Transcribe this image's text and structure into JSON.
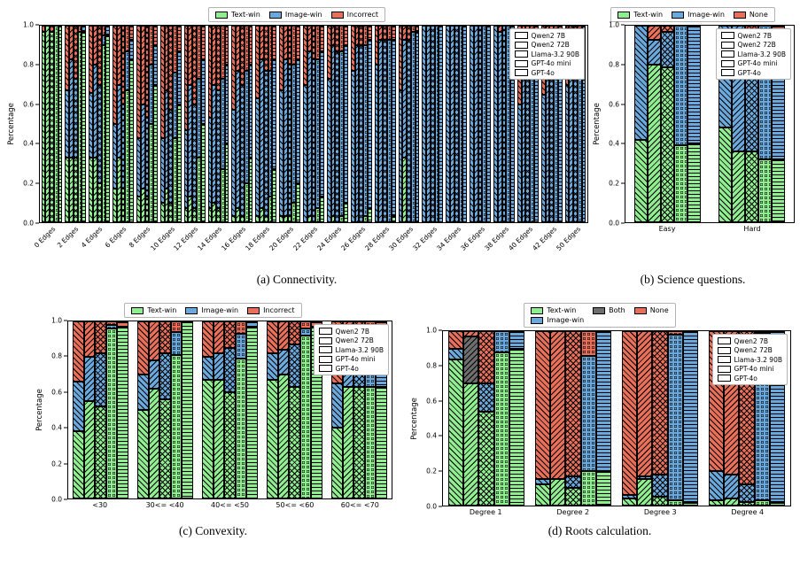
{
  "models": [
    {
      "name": "Qwen2 7B",
      "hatch": "diagonal-forward"
    },
    {
      "name": "Qwen2 72B",
      "hatch": "diagonal-back"
    },
    {
      "name": "Llama-3.2 90B",
      "hatch": "cross"
    },
    {
      "name": "GPT-4o mini",
      "hatch": "dots"
    },
    {
      "name": "GPT-4o",
      "hatch": "horizontal"
    }
  ],
  "colors": {
    "text_win": "#90EE90",
    "image_win": "#6BA8DB",
    "incorrect": "#E8705B",
    "none": "#E8705B",
    "both": "#6E6E6E",
    "edge": "#000000"
  },
  "chart_data": [
    {
      "id": "a",
      "type": "bar",
      "stacked": true,
      "caption": "(a) Connectivity.",
      "ylabel": "Percentage",
      "ylim": [
        0,
        1.0
      ],
      "yticks": [
        0.0,
        0.2,
        0.4,
        0.6,
        0.8,
        1.0
      ],
      "rotate_xticks": true,
      "group_padding": 1.5,
      "segments": [
        {
          "label": "Text-win",
          "color": "#90EE90"
        },
        {
          "label": "Image-win",
          "color": "#6BA8DB"
        },
        {
          "label": "Incorrect",
          "color": "#E8705B"
        }
      ],
      "categories": [
        "0 Edges",
        "2 Edges",
        "4 Edges",
        "6 Edges",
        "8 Edges",
        "10 Edges",
        "12 Edges",
        "14 Edges",
        "16 Edges",
        "18 Edges",
        "20 Edges",
        "22 Edges",
        "24 Edges",
        "26 Edges",
        "28 Edges",
        "30 Edges",
        "32 Edges",
        "34 Edges",
        "36 Edges",
        "38 Edges",
        "40 Edges",
        "42 Edges",
        "50 Edges"
      ],
      "values": [
        [
          [
            0.97,
            0,
            0.03
          ],
          [
            1,
            0,
            0
          ],
          [
            0.97,
            0,
            0.03
          ],
          [
            1,
            0,
            0
          ],
          [
            1,
            0,
            0
          ]
        ],
        [
          [
            0.33,
            0.34,
            0.33
          ],
          [
            0.33,
            0.5,
            0.17
          ],
          [
            0.33,
            0.4,
            0.27
          ],
          [
            0.97,
            0,
            0.03
          ],
          [
            0.97,
            0.03,
            0
          ]
        ],
        [
          [
            0.33,
            0.33,
            0.34
          ],
          [
            0.33,
            0.47,
            0.2
          ],
          [
            0.2,
            0.5,
            0.3
          ],
          [
            0.9,
            0.05,
            0.05
          ],
          [
            0.95,
            0.05,
            0
          ]
        ],
        [
          [
            0.17,
            0.33,
            0.5
          ],
          [
            0.33,
            0.37,
            0.3
          ],
          [
            0.17,
            0.43,
            0.4
          ],
          [
            0.67,
            0.2,
            0.13
          ],
          [
            0.83,
            0.1,
            0.07
          ]
        ],
        [
          [
            0.13,
            0.3,
            0.57
          ],
          [
            0.17,
            0.43,
            0.4
          ],
          [
            0.13,
            0.4,
            0.47
          ],
          [
            0.5,
            0.3,
            0.2
          ],
          [
            0.7,
            0.2,
            0.1
          ]
        ],
        [
          [
            0.1,
            0.33,
            0.57
          ],
          [
            0.17,
            0.5,
            0.33
          ],
          [
            0.1,
            0.47,
            0.43
          ],
          [
            0.43,
            0.33,
            0.24
          ],
          [
            0.6,
            0.27,
            0.13
          ]
        ],
        [
          [
            0.07,
            0.4,
            0.53
          ],
          [
            0.13,
            0.57,
            0.3
          ],
          [
            0.07,
            0.53,
            0.4
          ],
          [
            0.33,
            0.4,
            0.27
          ],
          [
            0.5,
            0.33,
            0.17
          ]
        ],
        [
          [
            0.07,
            0.46,
            0.47
          ],
          [
            0.1,
            0.6,
            0.3
          ],
          [
            0.07,
            0.6,
            0.33
          ],
          [
            0.27,
            0.46,
            0.27
          ],
          [
            0.4,
            0.4,
            0.2
          ]
        ],
        [
          [
            0.03,
            0.54,
            0.43
          ],
          [
            0.07,
            0.7,
            0.23
          ],
          [
            0.03,
            0.67,
            0.3
          ],
          [
            0.2,
            0.57,
            0.23
          ],
          [
            0.33,
            0.47,
            0.2
          ]
        ],
        [
          [
            0.03,
            0.6,
            0.37
          ],
          [
            0.07,
            0.76,
            0.17
          ],
          [
            0.03,
            0.74,
            0.23
          ],
          [
            0.13,
            0.64,
            0.23
          ],
          [
            0.27,
            0.56,
            0.17
          ]
        ],
        [
          [
            0.03,
            0.64,
            0.33
          ],
          [
            0.03,
            0.8,
            0.17
          ],
          [
            0.03,
            0.77,
            0.2
          ],
          [
            0.1,
            0.7,
            0.2
          ],
          [
            0.2,
            0.63,
            0.17
          ]
        ],
        [
          [
            0,
            0.7,
            0.3
          ],
          [
            0.03,
            0.84,
            0.13
          ],
          [
            0,
            0.83,
            0.17
          ],
          [
            0.07,
            0.76,
            0.17
          ],
          [
            0.13,
            0.74,
            0.13
          ]
        ],
        [
          [
            0,
            0.73,
            0.27
          ],
          [
            0.03,
            0.87,
            0.1
          ],
          [
            0,
            0.87,
            0.13
          ],
          [
            0.03,
            0.84,
            0.13
          ],
          [
            0.1,
            0.8,
            0.1
          ]
        ],
        [
          [
            0,
            0.77,
            0.23
          ],
          [
            0,
            0.9,
            0.1
          ],
          [
            0,
            0.9,
            0.1
          ],
          [
            0.03,
            0.87,
            0.1
          ],
          [
            0.07,
            0.86,
            0.07
          ]
        ],
        [
          [
            0,
            0.8,
            0.2
          ],
          [
            0,
            0.93,
            0.07
          ],
          [
            0,
            0.93,
            0.07
          ],
          [
            0,
            0.93,
            0.07
          ],
          [
            0.03,
            0.9,
            0.07
          ]
        ],
        [
          [
            0,
            0.67,
            0.33
          ],
          [
            0.33,
            0.6,
            0.07
          ],
          [
            0,
            0.93,
            0.07
          ],
          [
            0,
            0.97,
            0.03
          ],
          [
            0,
            0.97,
            0.03
          ]
        ],
        [
          [
            0,
            1,
            0
          ],
          [
            0,
            1,
            0
          ],
          [
            0,
            1,
            0
          ],
          [
            0,
            1,
            0
          ],
          [
            0,
            1,
            0
          ]
        ],
        [
          [
            0,
            1,
            0
          ],
          [
            0,
            1,
            0
          ],
          [
            0,
            1,
            0
          ],
          [
            0,
            1,
            0
          ],
          [
            0,
            1,
            0
          ]
        ],
        [
          [
            0,
            1,
            0
          ],
          [
            0,
            1,
            0
          ],
          [
            0,
            1,
            0
          ],
          [
            0,
            1,
            0
          ],
          [
            0,
            1,
            0
          ]
        ],
        [
          [
            0,
            1,
            0
          ],
          [
            0,
            0.97,
            0.03
          ],
          [
            0,
            1,
            0
          ],
          [
            0,
            1,
            0
          ],
          [
            0,
            1,
            0
          ]
        ],
        [
          [
            0,
            0.6,
            0.4
          ],
          [
            0,
            0.8,
            0.2
          ],
          [
            0,
            0.75,
            0.25
          ],
          [
            0,
            0.85,
            0.15
          ],
          [
            0,
            0.9,
            0.1
          ]
        ],
        [
          [
            0,
            0.65,
            0.35
          ],
          [
            0,
            0.85,
            0.15
          ],
          [
            0,
            0.8,
            0.2
          ],
          [
            0,
            0.9,
            0.1
          ],
          [
            0,
            0.95,
            0.05
          ]
        ],
        [
          [
            0,
            0.7,
            0.3
          ],
          [
            0,
            0.9,
            0.1
          ],
          [
            0,
            0.85,
            0.15
          ],
          [
            0,
            0.95,
            0.05
          ],
          [
            0,
            1,
            0
          ]
        ]
      ]
    },
    {
      "id": "b",
      "type": "bar",
      "stacked": true,
      "caption": "(b) Science questions.",
      "ylabel": "Percentage",
      "ylim": [
        0,
        1.0
      ],
      "yticks": [
        0.0,
        0.2,
        0.4,
        0.6,
        0.8,
        1.0
      ],
      "rotate_xticks": false,
      "group_padding": 10,
      "segments": [
        {
          "label": "Text-win",
          "color": "#90EE90"
        },
        {
          "label": "Image-win",
          "color": "#6BA8DB"
        },
        {
          "label": "None",
          "color": "#E8705B"
        }
      ],
      "categories": [
        "Easy",
        "Hard"
      ],
      "values": [
        [
          [
            0.42,
            0.58,
            0
          ],
          [
            0.8,
            0.13,
            0.07
          ],
          [
            0.79,
            0.18,
            0.03
          ],
          [
            0.39,
            0.61,
            0
          ],
          [
            0.4,
            0.6,
            0
          ]
        ],
        [
          [
            0.48,
            0.52,
            0
          ],
          [
            0.36,
            0.64,
            0
          ],
          [
            0.36,
            0.56,
            0.08
          ],
          [
            0.32,
            0.68,
            0
          ],
          [
            0.32,
            0.6,
            0.08
          ]
        ]
      ]
    },
    {
      "id": "c",
      "type": "bar",
      "stacked": true,
      "caption": "(c) Convexity.",
      "ylabel": "Percentage",
      "ylim": [
        0,
        1.0
      ],
      "yticks": [
        0.0,
        0.2,
        0.4,
        0.6,
        0.8,
        1.0
      ],
      "rotate_xticks": false,
      "group_padding": 5,
      "segments": [
        {
          "label": "Text-win",
          "color": "#90EE90"
        },
        {
          "label": "Image-win",
          "color": "#6BA8DB"
        },
        {
          "label": "Incorrect",
          "color": "#E8705B"
        }
      ],
      "categories": [
        "<30",
        "30<= <40",
        "40<= <50",
        "50<= <60",
        "60<= <70"
      ],
      "values": [
        [
          [
            0.38,
            0.28,
            0.34
          ],
          [
            0.55,
            0.25,
            0.2
          ],
          [
            0.52,
            0.3,
            0.18
          ],
          [
            0.96,
            0.02,
            0.02
          ],
          [
            0.97,
            0,
            0.03
          ]
        ],
        [
          [
            0.5,
            0.2,
            0.3
          ],
          [
            0.62,
            0.16,
            0.22
          ],
          [
            0.56,
            0.26,
            0.18
          ],
          [
            0.81,
            0.13,
            0.06
          ],
          [
            1,
            0,
            0
          ]
        ],
        [
          [
            0.67,
            0.13,
            0.2
          ],
          [
            0.67,
            0.15,
            0.18
          ],
          [
            0.6,
            0.25,
            0.15
          ],
          [
            0.79,
            0.14,
            0.07
          ],
          [
            0.97,
            0.03,
            0
          ]
        ],
        [
          [
            0.67,
            0.15,
            0.18
          ],
          [
            0.7,
            0.14,
            0.16
          ],
          [
            0.63,
            0.24,
            0.13
          ],
          [
            0.92,
            0.04,
            0.04
          ],
          [
            0.97,
            0,
            0.03
          ]
        ],
        [
          [
            0.4,
            0.25,
            0.35
          ],
          [
            0.63,
            0.13,
            0.24
          ],
          [
            0.63,
            0.17,
            0.2
          ],
          [
            0.63,
            0.2,
            0.17
          ],
          [
            0.63,
            0.3,
            0.07
          ]
        ]
      ]
    },
    {
      "id": "d",
      "type": "bar",
      "stacked": true,
      "caption": "(d) Roots calculation.",
      "ylabel": "Percentage",
      "ylim": [
        0,
        1.0
      ],
      "yticks": [
        0.0,
        0.2,
        0.4,
        0.6,
        0.8,
        1.0
      ],
      "rotate_xticks": false,
      "group_padding": 6,
      "legend_rows": 2,
      "legend_order": [
        0,
        1,
        2,
        -1,
        3,
        -1
      ],
      "segments": [
        {
          "label": "Text-win",
          "color": "#90EE90"
        },
        {
          "label": "Image-win",
          "color": "#6BA8DB"
        },
        {
          "label": "Both",
          "color": "#6E6E6E"
        },
        {
          "label": "None",
          "color": "#E8705B"
        }
      ],
      "categories": [
        "Degree 1",
        "Degree 2",
        "Degree 3",
        "Degree 4"
      ],
      "values": [
        [
          [
            0.84,
            0.06,
            0,
            0.1
          ],
          [
            0.7,
            0,
            0.27,
            0.03
          ],
          [
            0.54,
            0.16,
            0,
            0.3
          ],
          [
            0.88,
            0.12,
            0,
            0
          ],
          [
            0.9,
            0.1,
            0,
            0
          ]
        ],
        [
          [
            0.12,
            0.03,
            0,
            0.85
          ],
          [
            0.15,
            0,
            0,
            0.85
          ],
          [
            0.1,
            0.07,
            0,
            0.83
          ],
          [
            0.2,
            0.66,
            0,
            0.14
          ],
          [
            0.2,
            0.8,
            0,
            0
          ]
        ],
        [
          [
            0.04,
            0.02,
            0,
            0.94
          ],
          [
            0.15,
            0.02,
            0,
            0.83
          ],
          [
            0.05,
            0.13,
            0,
            0.82
          ],
          [
            0.03,
            0.95,
            0,
            0.02
          ],
          [
            0.02,
            0.98,
            0,
            0
          ]
        ],
        [
          [
            0.03,
            0.17,
            0,
            0.8
          ],
          [
            0.04,
            0.14,
            0,
            0.82
          ],
          [
            0.02,
            0.1,
            0,
            0.88
          ],
          [
            0.03,
            0.96,
            0,
            0.01
          ],
          [
            0.02,
            0.98,
            0,
            0
          ]
        ]
      ]
    }
  ]
}
